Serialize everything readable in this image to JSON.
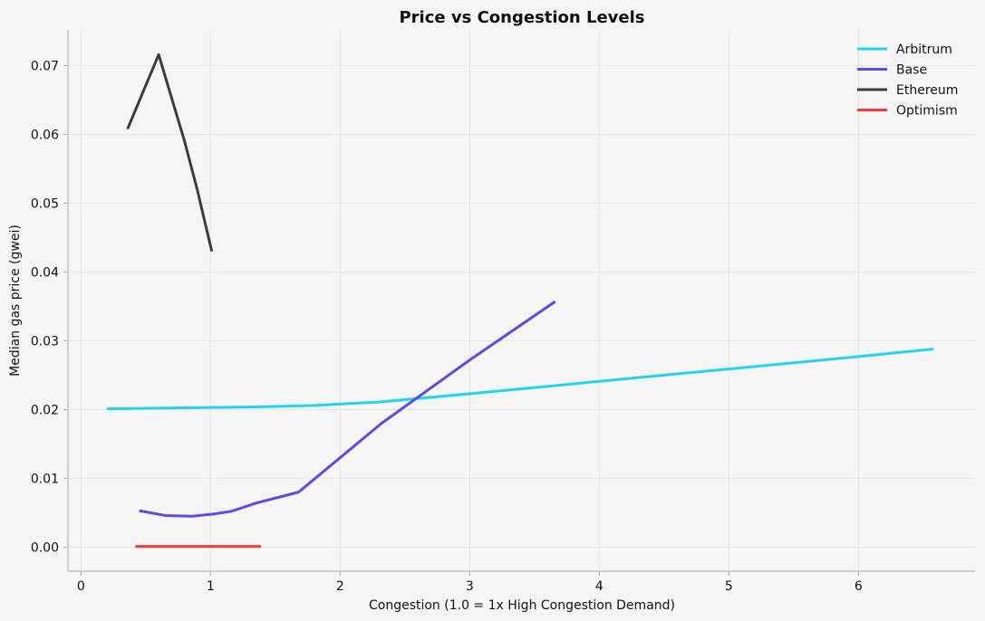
{
  "chart_data": {
    "type": "line",
    "title": "Price vs Congestion Levels",
    "xlabel": "Congestion (1.0 = 1x High Congestion Demand)",
    "ylabel": "Median gas price (gwei)",
    "xlim": [
      -0.1,
      6.9
    ],
    "ylim": [
      -0.0035,
      0.0752
    ],
    "xticks": [
      0,
      1,
      2,
      3,
      4,
      5,
      6
    ],
    "xtick_labels": [
      "0",
      "1",
      "2",
      "3",
      "4",
      "5",
      "6"
    ],
    "yticks": [
      0.0,
      0.01,
      0.02,
      0.03,
      0.04,
      0.05,
      0.06,
      0.07
    ],
    "ytick_labels": [
      "0.00",
      "0.01",
      "0.02",
      "0.03",
      "0.04",
      "0.05",
      "0.06",
      "0.07"
    ],
    "grid": true,
    "legend_position": "top-right",
    "series": [
      {
        "name": "Arbitrum",
        "color": "#22d3ee",
        "x": [
          0.2,
          0.6,
          1.0,
          1.4,
          1.8,
          2.3,
          3.0,
          4.0,
          5.0,
          6.0,
          6.58
        ],
        "y": [
          0.0201,
          0.0202,
          0.0203,
          0.0204,
          0.0206,
          0.0211,
          0.0223,
          0.0241,
          0.0259,
          0.0277,
          0.0288
        ]
      },
      {
        "name": "Base",
        "color": "#5b4ae8",
        "x": [
          0.45,
          0.65,
          0.86,
          1.02,
          1.16,
          1.35,
          1.68,
          2.32,
          3.0,
          3.66
        ],
        "y": [
          0.0053,
          0.0046,
          0.0045,
          0.0048,
          0.0052,
          0.0064,
          0.008,
          0.018,
          0.0272,
          0.0357
        ]
      },
      {
        "name": "Ethereum",
        "color": "#3c3c3c",
        "x": [
          0.36,
          0.6,
          0.8,
          0.9,
          1.01
        ],
        "y": [
          0.0608,
          0.0716,
          0.059,
          0.0518,
          0.043
        ]
      },
      {
        "name": "Optimism",
        "color": "#ee3b3b",
        "x": [
          0.42,
          0.8,
          1.0,
          1.39
        ],
        "y": [
          0.0001,
          0.0001,
          0.0001,
          0.0001
        ]
      }
    ]
  }
}
